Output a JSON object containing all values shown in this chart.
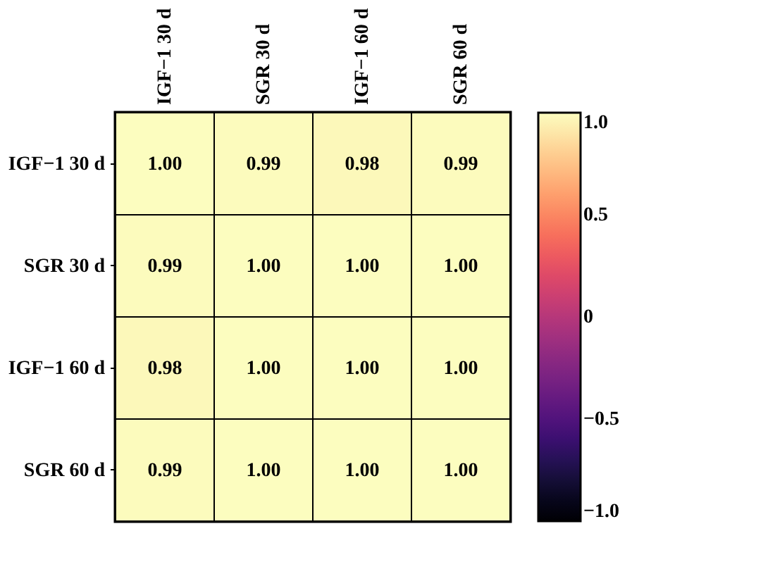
{
  "chart_data": {
    "type": "heatmap",
    "categories": [
      "IGF−1 30 d",
      "SGR 30 d",
      "IGF−1 60 d",
      "SGR 60 d"
    ],
    "y_categories": [
      "IGF−1 30 d",
      "SGR 30 d",
      "IGF−1 60 d",
      "SGR 60 d"
    ],
    "cells": [
      [
        1.0,
        0.99,
        0.98,
        0.99
      ],
      [
        0.99,
        1.0,
        1.0,
        1.0
      ],
      [
        0.98,
        1.0,
        1.0,
        1.0
      ],
      [
        0.99,
        1.0,
        1.0,
        1.0
      ]
    ],
    "cell_labels": [
      [
        "1.00",
        "0.99",
        "0.98",
        "0.99"
      ],
      [
        "0.99",
        "1.00",
        "1.00",
        "1.00"
      ],
      [
        "0.98",
        "1.00",
        "1.00",
        "1.00"
      ],
      [
        "0.99",
        "1.00",
        "1.00",
        "1.00"
      ]
    ],
    "clim": [
      -1.0,
      1.0
    ],
    "cticks": [
      {
        "value": 1.0,
        "label": "1.0"
      },
      0.5,
      0,
      {
        "value": -0.5,
        "label": "−0.5"
      },
      {
        "value": -1.0,
        "label": "−1.0"
      }
    ]
  }
}
